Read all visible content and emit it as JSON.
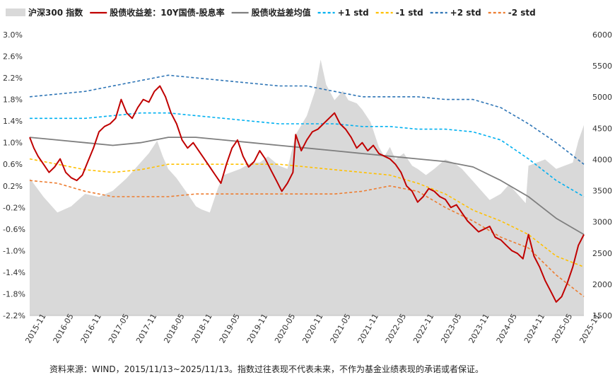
{
  "chart_data": {
    "type": "line",
    "colors": {
      "index_area": "#d9d9d9",
      "spread": "#c00000",
      "mean": "#7f7f7f",
      "plus1": "#00b0f0",
      "minus1": "#ffc000",
      "plus2": "#2e75b6",
      "minus2": "#ed7d31"
    },
    "legend": [
      {
        "key": "index",
        "label": "沪深300 指数",
        "style": "area"
      },
      {
        "key": "spread",
        "label": "股债收益差：10Y国债-股息率",
        "style": "line"
      },
      {
        "key": "mean",
        "label": "股债收益差均值",
        "style": "line"
      },
      {
        "key": "plus1",
        "label": "+1 std",
        "style": "dash"
      },
      {
        "key": "minus1",
        "label": "-1 std",
        "style": "dash"
      },
      {
        "key": "plus2",
        "label": "+2 std",
        "style": "dash"
      },
      {
        "key": "minus2",
        "label": "-2 std",
        "style": "dash"
      }
    ],
    "x_ticks": [
      "2015-11",
      "2016-05",
      "2016-11",
      "2017-05",
      "2017-11",
      "2018-05",
      "2018-11",
      "2019-05",
      "2019-11",
      "2020-05",
      "2020-11",
      "2021-05",
      "2021-11",
      "2022-05",
      "2022-11",
      "2023-05",
      "2023-11",
      "2024-05",
      "2024-11",
      "2025-05",
      "2025-11"
    ],
    "left_axis": {
      "ylim": [
        -2.2,
        3.0
      ],
      "ticks": [
        "3.0%",
        "2.6%",
        "2.2%",
        "1.8%",
        "1.4%",
        "1.0%",
        "0.6%",
        "0.2%",
        "-0.2%",
        "-0.6%",
        "-1.0%",
        "-1.4%",
        "-1.8%",
        "-2.2%"
      ]
    },
    "right_axis": {
      "ylim": [
        1500,
        6000
      ],
      "ticks": [
        "6000",
        "5500",
        "5000",
        "4500",
        "4000",
        "3500",
        "3000",
        "2500",
        "2000",
        "1500"
      ]
    },
    "time_range": [
      0,
      20
    ],
    "series": [
      {
        "key": "index",
        "axis": "right",
        "points": [
          [
            0,
            3700
          ],
          [
            0.5,
            3400
          ],
          [
            1,
            3150
          ],
          [
            1.5,
            3250
          ],
          [
            2,
            3450
          ],
          [
            2.5,
            3400
          ],
          [
            3,
            3500
          ],
          [
            3.5,
            3700
          ],
          [
            4,
            3950
          ],
          [
            4.3,
            4100
          ],
          [
            4.6,
            4300
          ],
          [
            4.8,
            4050
          ],
          [
            5,
            3850
          ],
          [
            5.3,
            3700
          ],
          [
            5.7,
            3450
          ],
          [
            6,
            3250
          ],
          [
            6.2,
            3200
          ],
          [
            6.5,
            3150
          ],
          [
            6.8,
            3550
          ],
          [
            7,
            3750
          ],
          [
            7.3,
            3800
          ],
          [
            7.6,
            3850
          ],
          [
            8,
            3950
          ],
          [
            8.3,
            3950
          ],
          [
            8.6,
            4050
          ],
          [
            9,
            3900
          ],
          [
            9.3,
            3850
          ],
          [
            9.6,
            4400
          ],
          [
            10,
            4700
          ],
          [
            10.3,
            5100
          ],
          [
            10.5,
            5600
          ],
          [
            10.7,
            5200
          ],
          [
            11,
            4950
          ],
          [
            11.3,
            5100
          ],
          [
            11.5,
            4950
          ],
          [
            11.8,
            4900
          ],
          [
            12,
            4800
          ],
          [
            12.3,
            4600
          ],
          [
            12.6,
            4200
          ],
          [
            12.8,
            4050
          ],
          [
            13,
            4200
          ],
          [
            13.2,
            4000
          ],
          [
            13.5,
            4100
          ],
          [
            13.8,
            3900
          ],
          [
            14,
            3850
          ],
          [
            14.3,
            3750
          ],
          [
            14.6,
            3850
          ],
          [
            15,
            4000
          ],
          [
            15.3,
            3950
          ],
          [
            15.6,
            3850
          ],
          [
            16,
            3650
          ],
          [
            16.3,
            3500
          ],
          [
            16.6,
            3350
          ],
          [
            17,
            3450
          ],
          [
            17.3,
            3600
          ],
          [
            17.6,
            3450
          ],
          [
            17.9,
            3300
          ],
          [
            18,
            3900
          ],
          [
            18.3,
            3950
          ],
          [
            18.6,
            4000
          ],
          [
            19,
            3850
          ],
          [
            19.3,
            3900
          ],
          [
            19.6,
            3950
          ],
          [
            19.8,
            4300
          ],
          [
            20,
            4550
          ]
        ]
      },
      {
        "key": "spread",
        "axis": "left",
        "points": [
          [
            0,
            1.1
          ],
          [
            0.15,
            0.9
          ],
          [
            0.3,
            0.75
          ],
          [
            0.5,
            0.6
          ],
          [
            0.7,
            0.45
          ],
          [
            0.9,
            0.55
          ],
          [
            1.1,
            0.7
          ],
          [
            1.3,
            0.45
          ],
          [
            1.5,
            0.35
          ],
          [
            1.7,
            0.3
          ],
          [
            1.9,
            0.4
          ],
          [
            2.1,
            0.65
          ],
          [
            2.3,
            0.9
          ],
          [
            2.5,
            1.2
          ],
          [
            2.7,
            1.3
          ],
          [
            2.9,
            1.35
          ],
          [
            3.1,
            1.45
          ],
          [
            3.3,
            1.8
          ],
          [
            3.5,
            1.55
          ],
          [
            3.7,
            1.45
          ],
          [
            3.9,
            1.65
          ],
          [
            4.1,
            1.8
          ],
          [
            4.3,
            1.75
          ],
          [
            4.5,
            1.95
          ],
          [
            4.7,
            2.05
          ],
          [
            4.9,
            1.85
          ],
          [
            5.1,
            1.55
          ],
          [
            5.3,
            1.35
          ],
          [
            5.5,
            1.05
          ],
          [
            5.7,
            0.9
          ],
          [
            5.9,
            1.0
          ],
          [
            6.1,
            0.85
          ],
          [
            6.3,
            0.7
          ],
          [
            6.5,
            0.55
          ],
          [
            6.7,
            0.4
          ],
          [
            6.9,
            0.25
          ],
          [
            7.1,
            0.6
          ],
          [
            7.3,
            0.9
          ],
          [
            7.5,
            1.05
          ],
          [
            7.7,
            0.75
          ],
          [
            7.9,
            0.55
          ],
          [
            8.1,
            0.65
          ],
          [
            8.3,
            0.85
          ],
          [
            8.5,
            0.7
          ],
          [
            8.7,
            0.5
          ],
          [
            8.9,
            0.3
          ],
          [
            9.1,
            0.1
          ],
          [
            9.3,
            0.25
          ],
          [
            9.5,
            0.45
          ],
          [
            9.6,
            1.15
          ],
          [
            9.8,
            0.85
          ],
          [
            10,
            1.05
          ],
          [
            10.2,
            1.2
          ],
          [
            10.4,
            1.25
          ],
          [
            10.6,
            1.35
          ],
          [
            10.8,
            1.45
          ],
          [
            11,
            1.55
          ],
          [
            11.2,
            1.35
          ],
          [
            11.4,
            1.25
          ],
          [
            11.6,
            1.1
          ],
          [
            11.8,
            0.9
          ],
          [
            12,
            1.0
          ],
          [
            12.2,
            0.85
          ],
          [
            12.4,
            0.95
          ],
          [
            12.6,
            0.8
          ],
          [
            12.8,
            0.75
          ],
          [
            13,
            0.7
          ],
          [
            13.2,
            0.6
          ],
          [
            13.4,
            0.45
          ],
          [
            13.6,
            0.2
          ],
          [
            13.8,
            0.1
          ],
          [
            14,
            -0.1
          ],
          [
            14.2,
            0.0
          ],
          [
            14.4,
            0.15
          ],
          [
            14.6,
            0.1
          ],
          [
            14.8,
            0.0
          ],
          [
            15,
            -0.05
          ],
          [
            15.2,
            -0.2
          ],
          [
            15.4,
            -0.15
          ],
          [
            15.6,
            -0.3
          ],
          [
            15.8,
            -0.45
          ],
          [
            16,
            -0.55
          ],
          [
            16.2,
            -0.65
          ],
          [
            16.4,
            -0.6
          ],
          [
            16.6,
            -0.55
          ],
          [
            16.8,
            -0.75
          ],
          [
            17,
            -0.8
          ],
          [
            17.2,
            -0.9
          ],
          [
            17.4,
            -1.0
          ],
          [
            17.6,
            -1.05
          ],
          [
            17.8,
            -1.15
          ],
          [
            18,
            -0.7
          ],
          [
            18.2,
            -1.1
          ],
          [
            18.4,
            -1.3
          ],
          [
            18.6,
            -1.55
          ],
          [
            18.8,
            -1.75
          ],
          [
            19,
            -1.95
          ],
          [
            19.2,
            -1.85
          ],
          [
            19.4,
            -1.6
          ],
          [
            19.6,
            -1.3
          ],
          [
            19.8,
            -0.9
          ],
          [
            20,
            -0.7
          ]
        ]
      },
      {
        "key": "mean",
        "axis": "left",
        "points": [
          [
            0,
            1.1
          ],
          [
            1,
            1.05
          ],
          [
            2,
            1.0
          ],
          [
            3,
            0.95
          ],
          [
            4,
            1.0
          ],
          [
            5,
            1.1
          ],
          [
            6,
            1.1
          ],
          [
            7,
            1.05
          ],
          [
            8,
            1.0
          ],
          [
            9,
            0.95
          ],
          [
            10,
            0.9
          ],
          [
            11,
            0.85
          ],
          [
            12,
            0.8
          ],
          [
            13,
            0.75
          ],
          [
            14,
            0.7
          ],
          [
            15,
            0.65
          ],
          [
            16,
            0.55
          ],
          [
            17,
            0.3
          ],
          [
            18,
            0.0
          ],
          [
            19,
            -0.4
          ],
          [
            20,
            -0.7
          ]
        ]
      },
      {
        "key": "plus1",
        "axis": "left",
        "points": [
          [
            0,
            1.45
          ],
          [
            1,
            1.45
          ],
          [
            2,
            1.45
          ],
          [
            3,
            1.5
          ],
          [
            4,
            1.55
          ],
          [
            5,
            1.55
          ],
          [
            6,
            1.5
          ],
          [
            7,
            1.45
          ],
          [
            8,
            1.4
          ],
          [
            9,
            1.35
          ],
          [
            10,
            1.35
          ],
          [
            11,
            1.35
          ],
          [
            12,
            1.3
          ],
          [
            13,
            1.3
          ],
          [
            14,
            1.25
          ],
          [
            15,
            1.25
          ],
          [
            16,
            1.2
          ],
          [
            17,
            1.05
          ],
          [
            18,
            0.7
          ],
          [
            19,
            0.3
          ],
          [
            20,
            0.0
          ]
        ]
      },
      {
        "key": "minus1",
        "axis": "left",
        "points": [
          [
            0,
            0.7
          ],
          [
            1,
            0.6
          ],
          [
            2,
            0.5
          ],
          [
            3,
            0.45
          ],
          [
            4,
            0.5
          ],
          [
            5,
            0.6
          ],
          [
            6,
            0.6
          ],
          [
            7,
            0.6
          ],
          [
            8,
            0.6
          ],
          [
            9,
            0.6
          ],
          [
            10,
            0.55
          ],
          [
            11,
            0.5
          ],
          [
            12,
            0.45
          ],
          [
            13,
            0.4
          ],
          [
            14,
            0.25
          ],
          [
            15,
            0.05
          ],
          [
            16,
            -0.25
          ],
          [
            17,
            -0.45
          ],
          [
            18,
            -0.7
          ],
          [
            19,
            -1.1
          ],
          [
            20,
            -1.3
          ]
        ]
      },
      {
        "key": "plus2",
        "axis": "left",
        "points": [
          [
            0,
            1.85
          ],
          [
            1,
            1.9
          ],
          [
            2,
            1.95
          ],
          [
            3,
            2.05
          ],
          [
            4,
            2.15
          ],
          [
            5,
            2.25
          ],
          [
            6,
            2.2
          ],
          [
            7,
            2.15
          ],
          [
            8,
            2.1
          ],
          [
            9,
            2.05
          ],
          [
            10,
            2.05
          ],
          [
            11,
            1.95
          ],
          [
            12,
            1.85
          ],
          [
            13,
            1.85
          ],
          [
            14,
            1.85
          ],
          [
            15,
            1.8
          ],
          [
            16,
            1.8
          ],
          [
            17,
            1.65
          ],
          [
            18,
            1.35
          ],
          [
            19,
            1.0
          ],
          [
            20,
            0.6
          ]
        ]
      },
      {
        "key": "minus2",
        "axis": "left",
        "points": [
          [
            0,
            0.3
          ],
          [
            1,
            0.25
          ],
          [
            2,
            0.1
          ],
          [
            3,
            0.0
          ],
          [
            4,
            0.0
          ],
          [
            5,
            0.0
          ],
          [
            6,
            0.05
          ],
          [
            7,
            0.05
          ],
          [
            8,
            0.05
          ],
          [
            9,
            0.05
          ],
          [
            10,
            0.05
          ],
          [
            11,
            0.05
          ],
          [
            12,
            0.1
          ],
          [
            13,
            0.2
          ],
          [
            14,
            0.1
          ],
          [
            15,
            -0.2
          ],
          [
            16,
            -0.45
          ],
          [
            17,
            -0.75
          ],
          [
            18,
            -0.95
          ],
          [
            19,
            -1.45
          ],
          [
            20,
            -1.85
          ]
        ]
      }
    ]
  },
  "footnote": "资料来源：WIND，2015/11/13~2025/11/13。指数过往表现不代表未来，不作为基金业绩表现的承诺或者保证。"
}
